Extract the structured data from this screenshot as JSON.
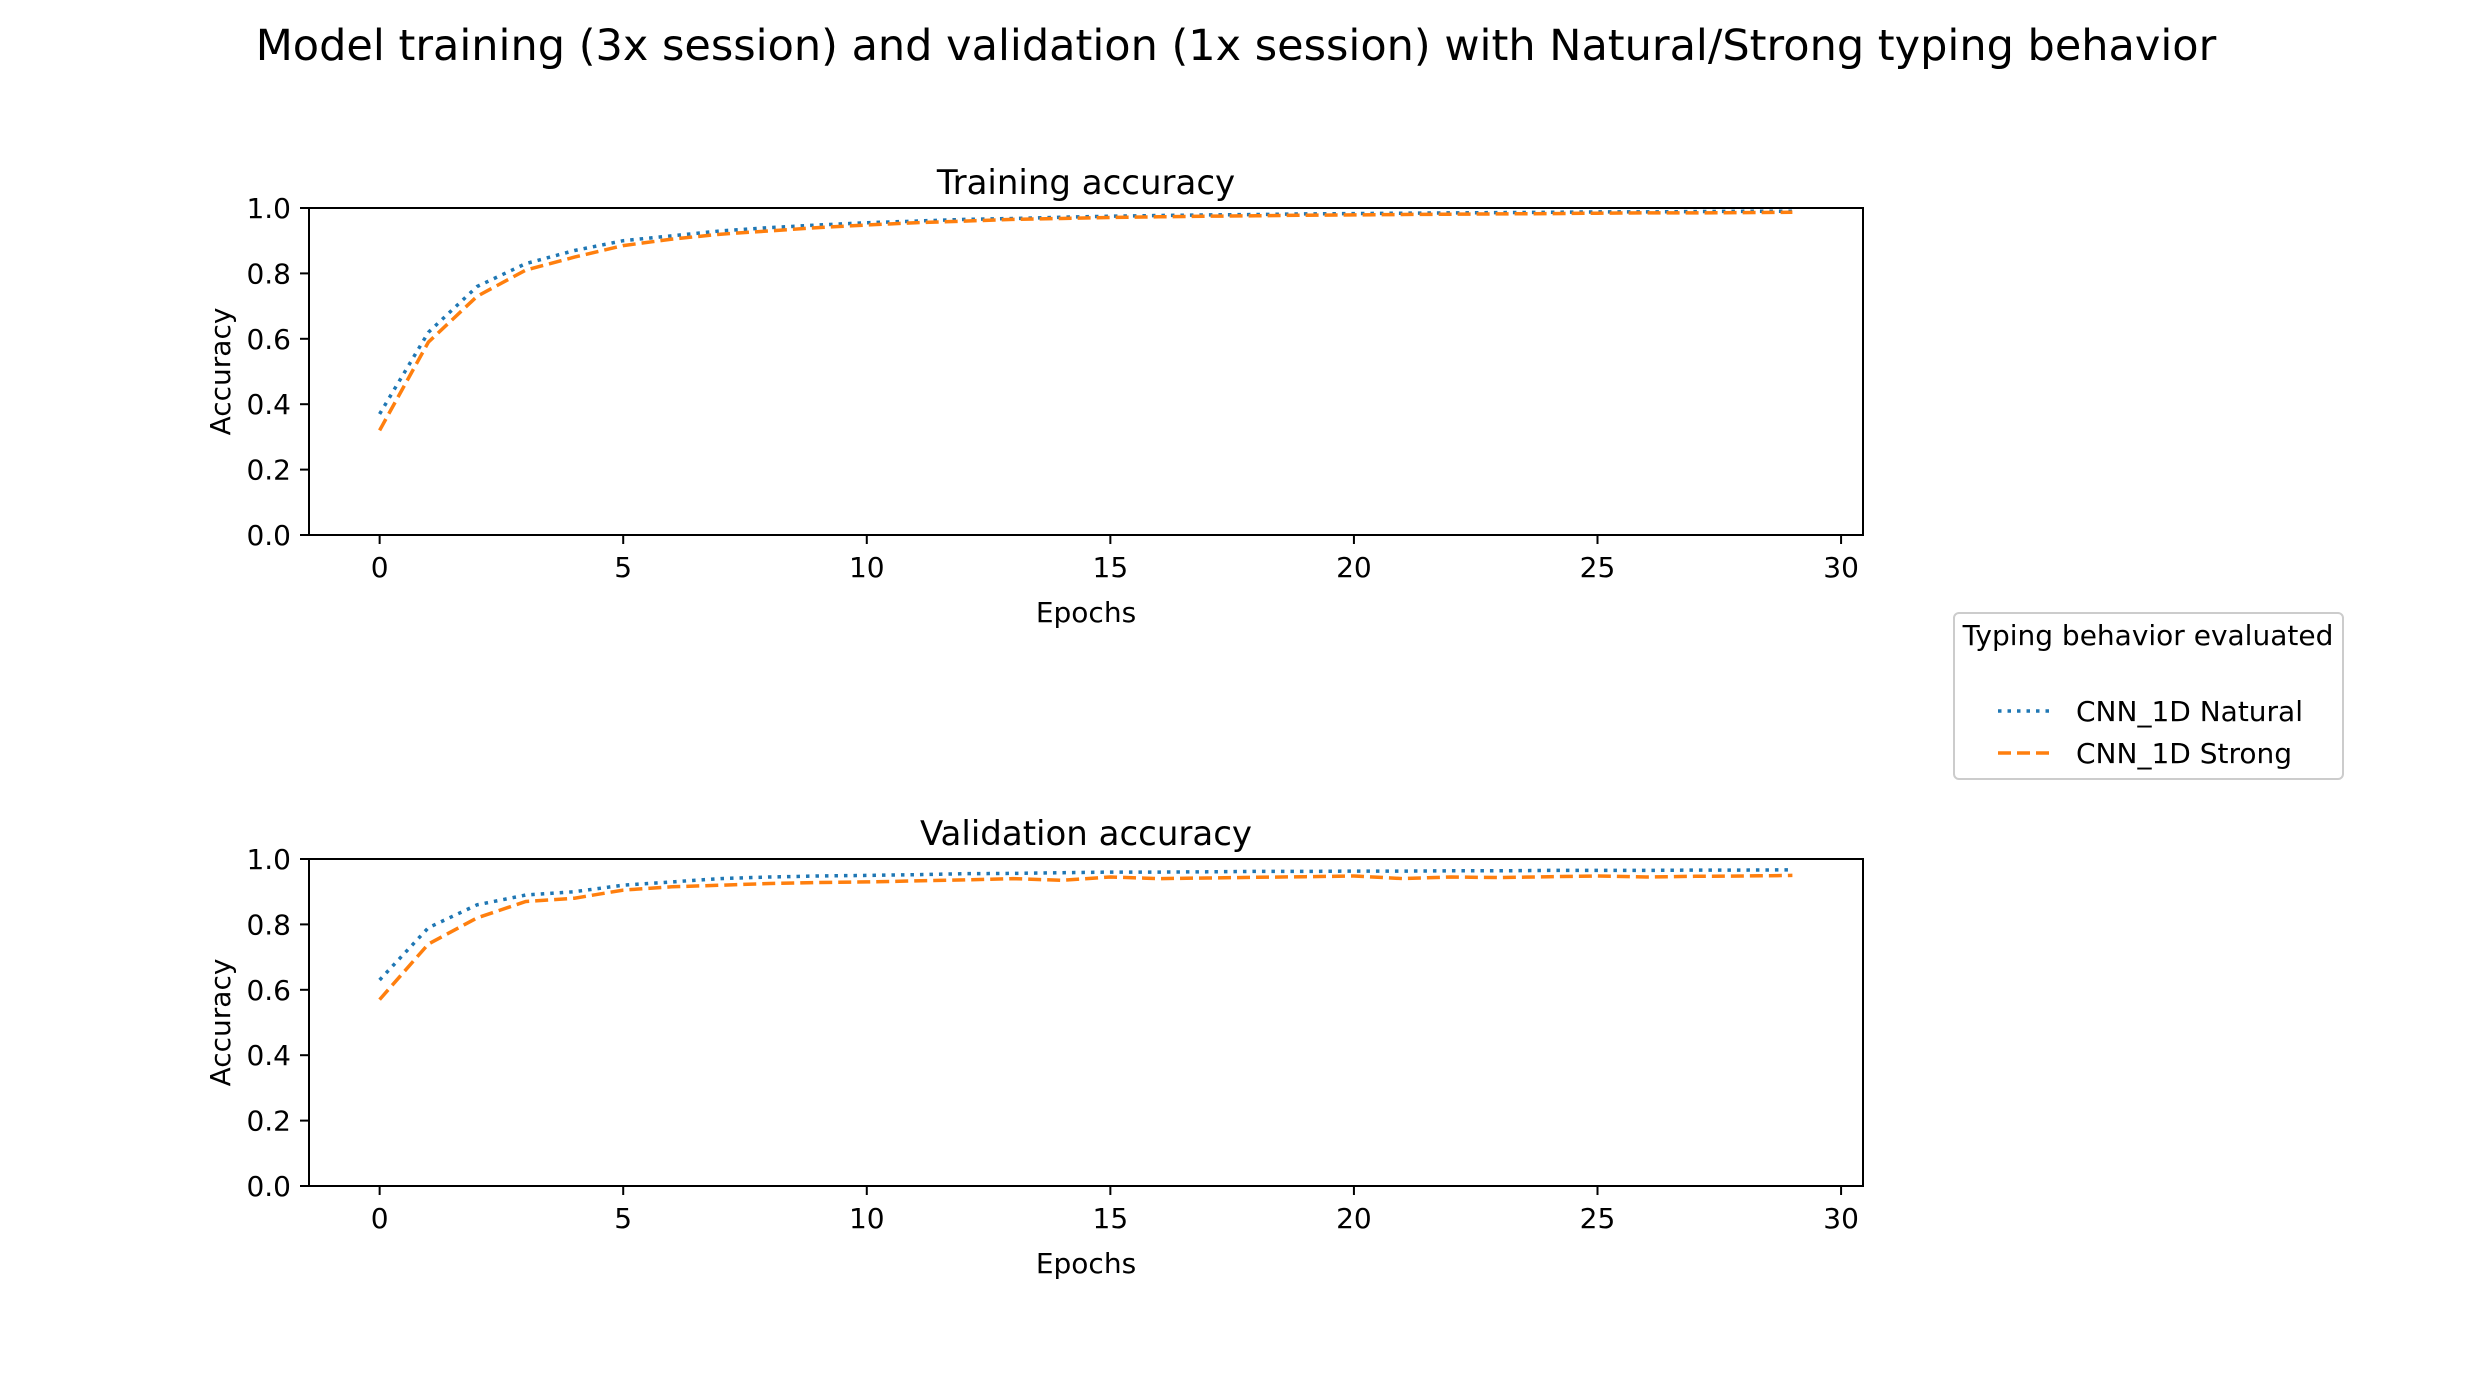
{
  "figure": {
    "title": "Model training (3x session) and validation (1x session) with Natural/Strong typing behavior"
  },
  "legend": {
    "title": "Typing behavior evaluated",
    "placement": "right, between panels",
    "entries": [
      {
        "label": "CNN_1D Natural",
        "color": "#1f77b4",
        "style": "dotted"
      },
      {
        "label": "CNN_1D Strong",
        "color": "#ff7f0e",
        "style": "dashed"
      }
    ]
  },
  "chart_data": [
    {
      "type": "line",
      "title": "Training accuracy",
      "xlabel": "Epochs",
      "ylabel": "Accuracy",
      "xlim": [
        -1.45,
        30.45
      ],
      "ylim": [
        0.0,
        1.0
      ],
      "xticks": [
        0,
        5,
        10,
        15,
        20,
        25,
        30
      ],
      "yticks": [
        0.0,
        0.2,
        0.4,
        0.6,
        0.8,
        1.0
      ],
      "grid": false,
      "x": [
        0,
        1,
        2,
        3,
        4,
        5,
        6,
        7,
        8,
        9,
        10,
        11,
        12,
        13,
        14,
        15,
        16,
        17,
        18,
        19,
        20,
        21,
        22,
        23,
        24,
        25,
        26,
        27,
        28,
        29
      ],
      "series": [
        {
          "name": "CNN_1D Natural",
          "color": "#1f77b4",
          "style": "dotted",
          "values": [
            0.37,
            0.62,
            0.76,
            0.83,
            0.87,
            0.9,
            0.915,
            0.93,
            0.94,
            0.948,
            0.955,
            0.96,
            0.965,
            0.968,
            0.972,
            0.975,
            0.977,
            0.979,
            0.98,
            0.982,
            0.983,
            0.984,
            0.985,
            0.986,
            0.987,
            0.988,
            0.988,
            0.989,
            0.99,
            0.99
          ]
        },
        {
          "name": "CNN_1D Strong",
          "color": "#ff7f0e",
          "style": "dashed",
          "values": [
            0.32,
            0.59,
            0.73,
            0.81,
            0.85,
            0.885,
            0.905,
            0.92,
            0.93,
            0.94,
            0.948,
            0.955,
            0.96,
            0.965,
            0.968,
            0.971,
            0.973,
            0.975,
            0.976,
            0.978,
            0.979,
            0.98,
            0.981,
            0.982,
            0.983,
            0.984,
            0.985,
            0.985,
            0.986,
            0.987
          ]
        }
      ]
    },
    {
      "type": "line",
      "title": "Validation accuracy",
      "xlabel": "Epochs",
      "ylabel": "Accuracy",
      "xlim": [
        -1.45,
        30.45
      ],
      "ylim": [
        0.0,
        1.0
      ],
      "xticks": [
        0,
        5,
        10,
        15,
        20,
        25,
        30
      ],
      "yticks": [
        0.0,
        0.2,
        0.4,
        0.6,
        0.8,
        1.0
      ],
      "grid": false,
      "x": [
        0,
        1,
        2,
        3,
        4,
        5,
        6,
        7,
        8,
        9,
        10,
        11,
        12,
        13,
        14,
        15,
        16,
        17,
        18,
        19,
        20,
        21,
        22,
        23,
        24,
        25,
        26,
        27,
        28,
        29
      ],
      "series": [
        {
          "name": "CNN_1D Natural",
          "color": "#1f77b4",
          "style": "dotted",
          "values": [
            0.63,
            0.79,
            0.86,
            0.89,
            0.9,
            0.92,
            0.93,
            0.94,
            0.945,
            0.948,
            0.95,
            0.952,
            0.955,
            0.956,
            0.958,
            0.96,
            0.96,
            0.961,
            0.962,
            0.962,
            0.963,
            0.963,
            0.964,
            0.964,
            0.965,
            0.965,
            0.965,
            0.966,
            0.966,
            0.967
          ]
        },
        {
          "name": "CNN_1D Strong",
          "color": "#ff7f0e",
          "style": "dashed",
          "values": [
            0.57,
            0.74,
            0.82,
            0.87,
            0.88,
            0.905,
            0.915,
            0.92,
            0.925,
            0.928,
            0.93,
            0.933,
            0.936,
            0.94,
            0.935,
            0.945,
            0.94,
            0.942,
            0.944,
            0.946,
            0.948,
            0.94,
            0.945,
            0.943,
            0.946,
            0.948,
            0.945,
            0.947,
            0.948,
            0.95
          ]
        }
      ]
    }
  ]
}
